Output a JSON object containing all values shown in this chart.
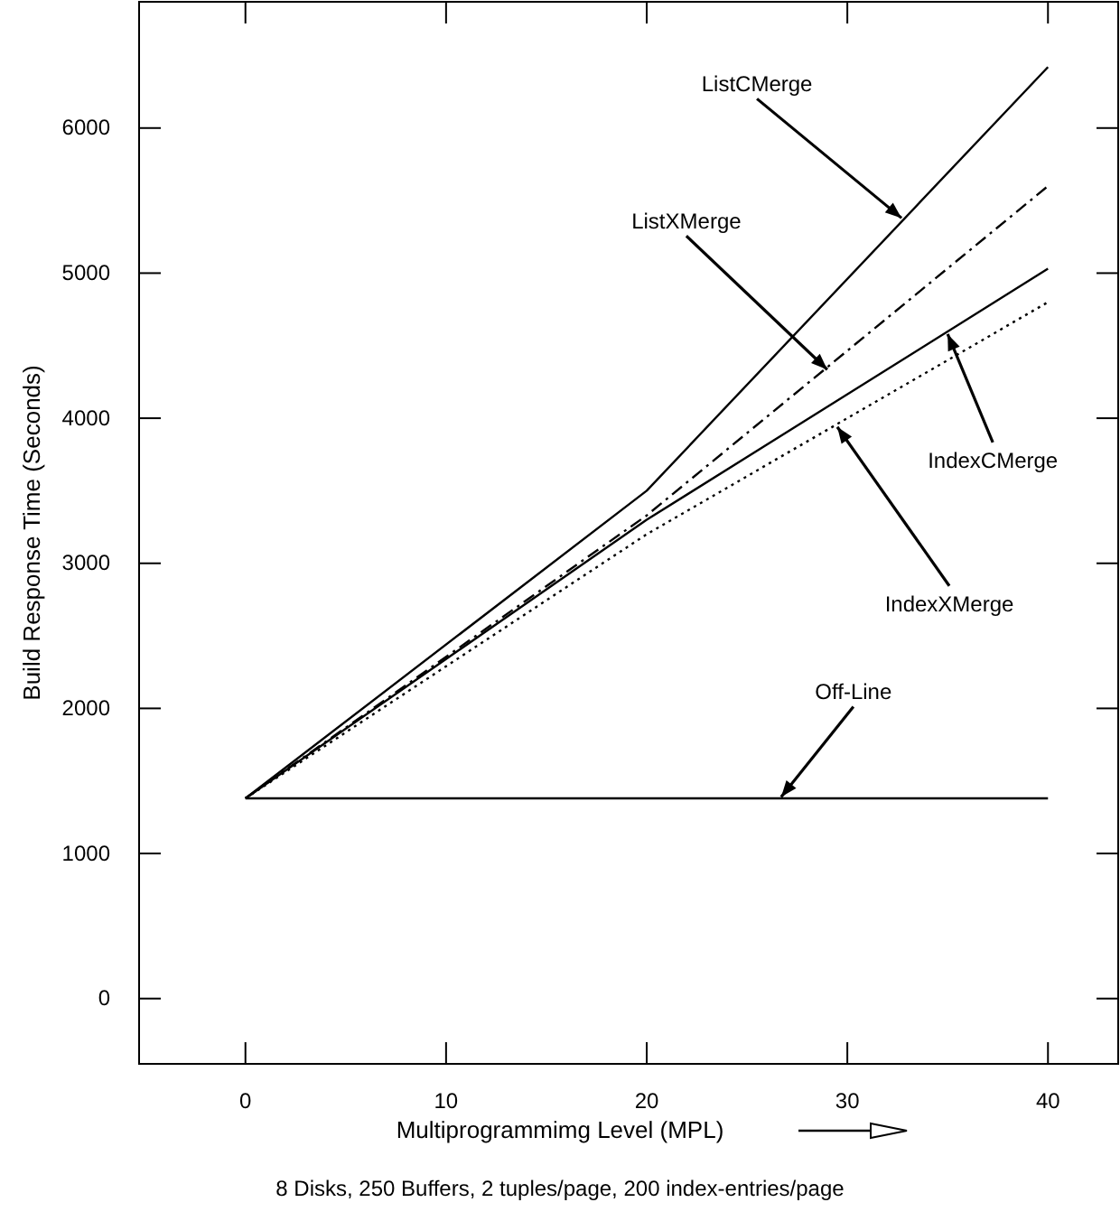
{
  "chart_data": {
    "type": "line",
    "xlabel": "Multiprogrammimg Level (MPL)",
    "ylabel": "Build Response Time (Seconds)",
    "x": [
      0,
      20,
      40
    ],
    "series": [
      {
        "color": "#000000",
        "line_style": "solid",
        "values": [
          1380,
          3500,
          6420
        ]
      },
      {
        "color": "#000000",
        "line_style": "dashdot",
        "values": [
          1380,
          3330,
          5600
        ]
      },
      {
        "color": "#000000",
        "line_style": "solid",
        "values": [
          1380,
          3300,
          5030
        ]
      },
      {
        "color": "#000000",
        "line_style": "dotted",
        "values": [
          1380,
          3200,
          4800
        ]
      },
      {
        "color": "#000000",
        "line_style": "solid",
        "values": [
          1380,
          1380,
          1380
        ]
      }
    ],
    "xlim": [
      -5.3,
      43.5
    ],
    "ylim": [
      -450,
      6870
    ],
    "xticks": [
      0,
      10,
      20,
      30,
      40
    ],
    "yticks": [
      0,
      1000,
      2000,
      3000,
      4000,
      5000,
      6000
    ],
    "grid": false,
    "marker": "none",
    "annotations": [
      {
        "text": "ListCMerge",
        "x": 32.7,
        "y": 5380
      },
      {
        "text": "ListXMerge",
        "x": 29,
        "y": 4335
      },
      {
        "text": "IndexCMerge",
        "x": 35,
        "y": 4580
      },
      {
        "text": "IndexXMerge",
        "x": 29.5,
        "y": 3940
      },
      {
        "text": "Off-Line",
        "x": 26.7,
        "y": 1390
      },
      "8 Disks, 250 Buffers, 2 tuples/page, 200 index-entries/page"
    ]
  }
}
